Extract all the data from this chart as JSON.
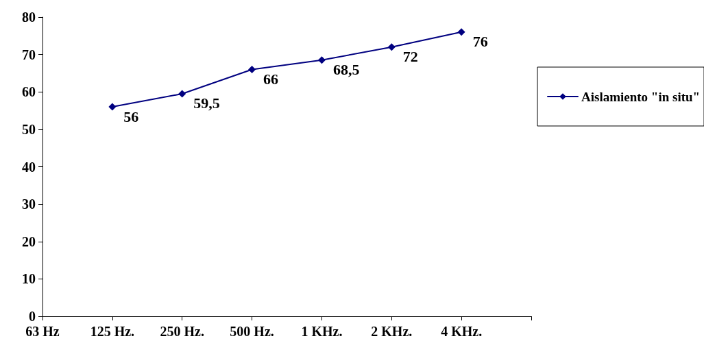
{
  "chart_data": {
    "type": "line",
    "categories": [
      "63 Hz",
      "125 Hz.",
      "250 Hz.",
      "500 Hz.",
      "1 KHz.",
      "2 KHz.",
      "4 KHz.",
      null
    ],
    "series": [
      {
        "name": "Aislamiento \"in situ\"",
        "color": "#000080",
        "values": [
          null,
          56,
          59.5,
          66,
          68.5,
          72,
          76,
          null
        ],
        "value_labels": [
          null,
          "56",
          "59,5",
          "66",
          "68,5",
          "72",
          "76",
          null
        ]
      }
    ],
    "ylim": [
      0,
      80
    ],
    "yticks": [
      0,
      10,
      20,
      30,
      40,
      50,
      60,
      70,
      80
    ],
    "grid": false,
    "legend": "right",
    "marker": "diamond",
    "line_style": "solid"
  }
}
